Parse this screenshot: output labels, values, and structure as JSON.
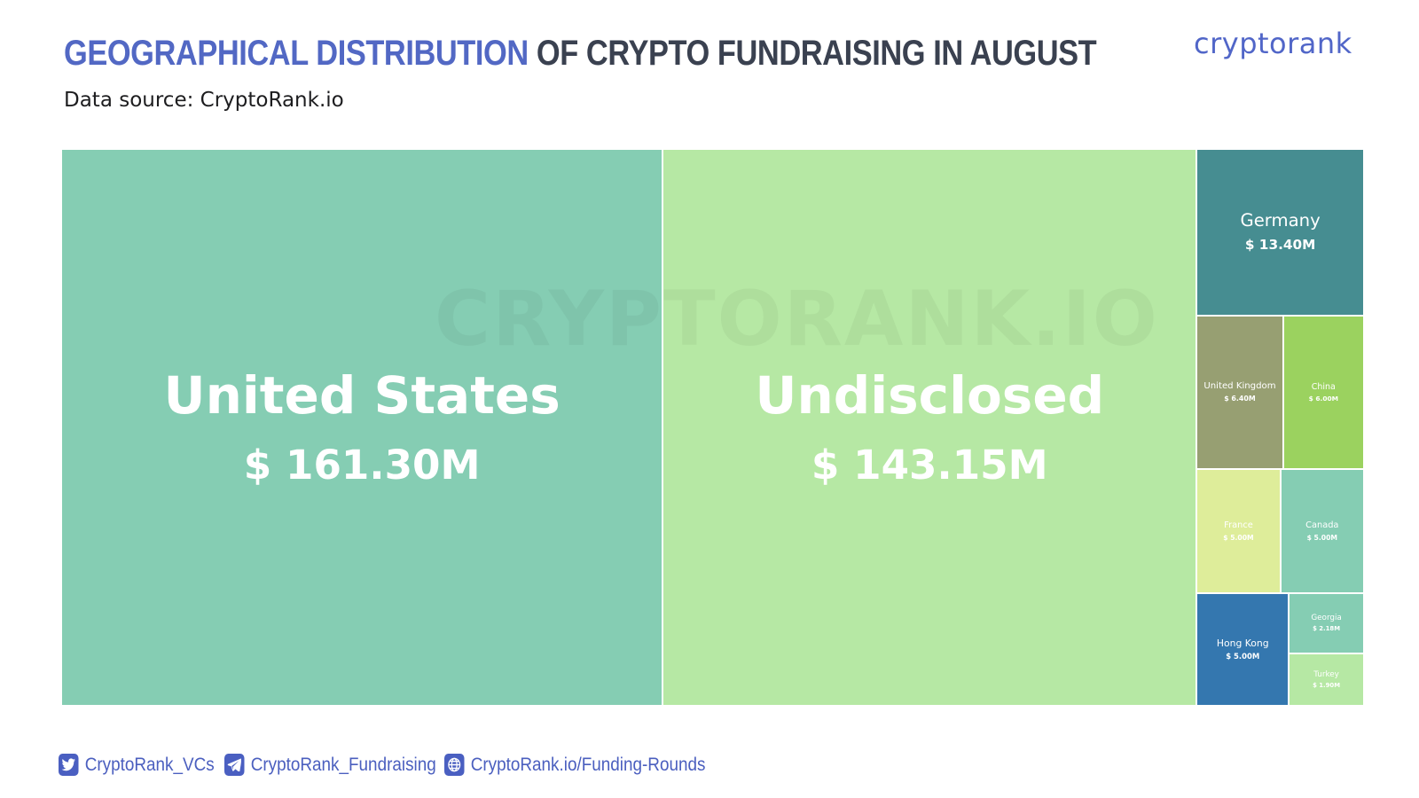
{
  "header": {
    "title_highlight": "GEOGRAPHICAL DISTRIBUTION",
    "title_rest": "OF CRYPTO FUNDRAISING IN AUGUST",
    "subtitle": "Data source: CryptoRank.io",
    "logo": "cryptorank"
  },
  "watermark": "CRYPTORANK.IO",
  "colors": {
    "title_highlight": "#5268c4",
    "title_rest": "#3a4150",
    "link": "#4b5fbf"
  },
  "chart_data": {
    "type": "treemap",
    "title": "GEOGRAPHICAL DISTRIBUTION OF CRYPTO FUNDRAISING IN AUGUST",
    "unit": "$M",
    "items": [
      {
        "name": "United States",
        "value": 161.3,
        "label": "$ 161.30M",
        "color": "#85cdb3"
      },
      {
        "name": "Undisclosed",
        "value": 143.15,
        "label": "$ 143.15M",
        "color": "#b6e8a4"
      },
      {
        "name": "Germany",
        "value": 13.4,
        "label": "$ 13.40M",
        "color": "#468d91"
      },
      {
        "name": "United Kingdom",
        "value": 6.4,
        "label": "$ 6.40M",
        "color": "#979f72"
      },
      {
        "name": "China",
        "value": 6.0,
        "label": "$ 6.00M",
        "color": "#9bd25f"
      },
      {
        "name": "France",
        "value": 5.0,
        "label": "$ 5.00M",
        "color": "#deed9a"
      },
      {
        "name": "Canada",
        "value": 5.0,
        "label": "$ 5.00M",
        "color": "#85cdb3"
      },
      {
        "name": "Hong Kong",
        "value": 5.0,
        "label": "$ 5.00M",
        "color": "#3477af"
      },
      {
        "name": "Georgia",
        "value": 2.18,
        "label": "$ 2.18M",
        "color": "#85cdb3"
      },
      {
        "name": "Turkey",
        "value": 1.9,
        "label": "$ 1.90M",
        "color": "#b6e8a4"
      }
    ]
  },
  "footer": {
    "twitter": "CryptoRank_VCs",
    "telegram": "CryptoRank_Fundraising",
    "website": "CryptoRank.io/Funding-Rounds",
    "icons": [
      "twitter-icon",
      "telegram-icon",
      "globe-icon"
    ]
  }
}
